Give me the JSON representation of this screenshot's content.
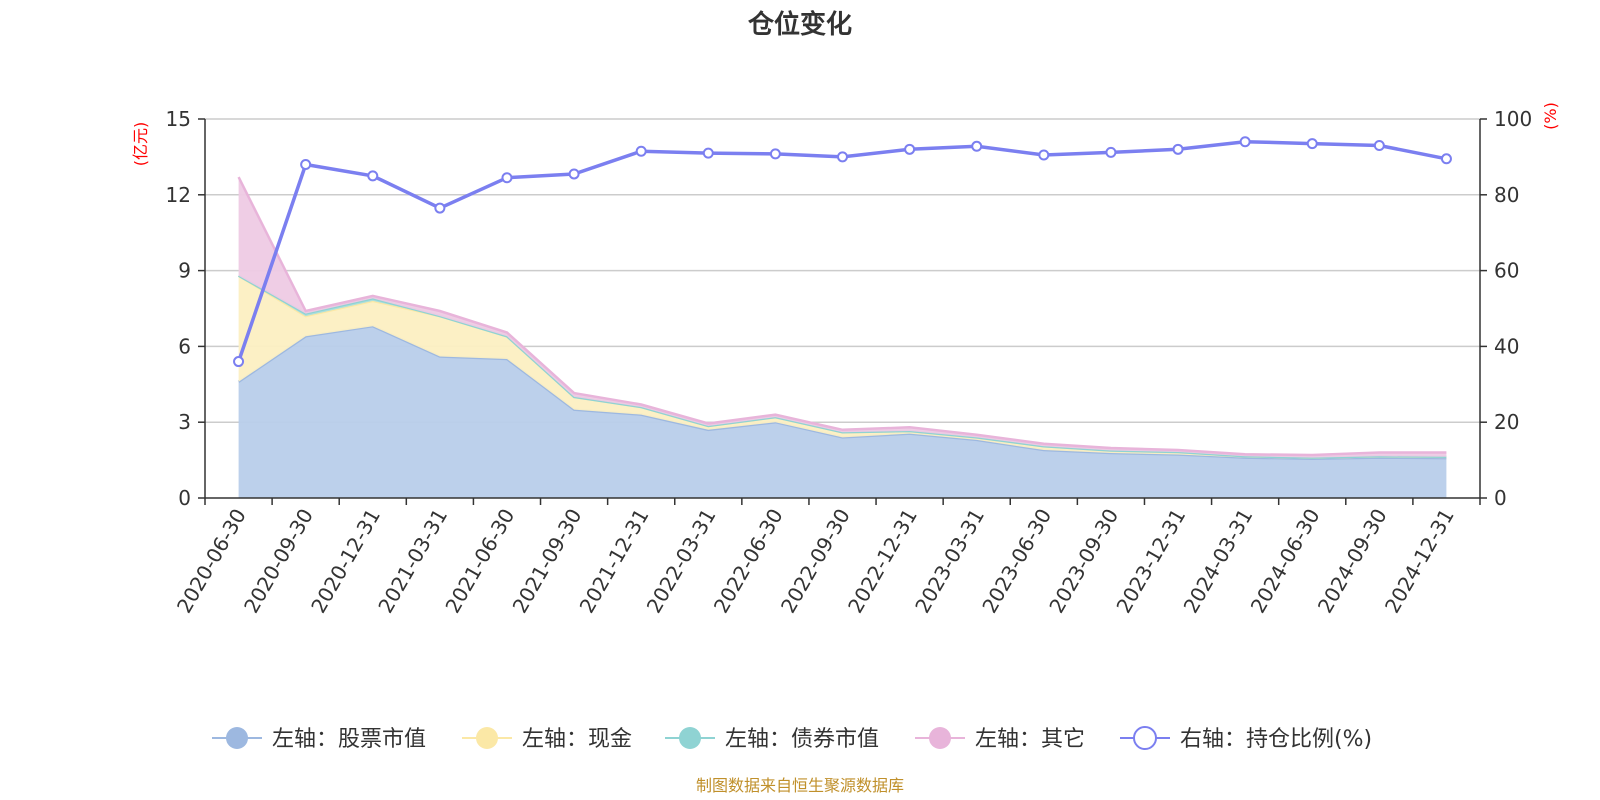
{
  "title": "仓位变化",
  "source": "制图数据来自恒生聚源数据库",
  "chart_data": {
    "type": "area",
    "categories": [
      "2020-06-30",
      "2020-09-30",
      "2020-12-31",
      "2021-03-31",
      "2021-06-30",
      "2021-09-30",
      "2021-12-31",
      "2022-03-31",
      "2022-06-30",
      "2022-09-30",
      "2022-12-31",
      "2023-03-31",
      "2023-06-30",
      "2023-09-30",
      "2023-12-31",
      "2024-03-31",
      "2024-06-30",
      "2024-09-30",
      "2024-12-31"
    ],
    "left_axis": {
      "unit": "(亿元)",
      "ylim": [
        0,
        15
      ],
      "ticks": [
        0,
        3,
        6,
        9,
        12,
        15
      ]
    },
    "right_axis": {
      "unit": "(%)",
      "ylim": [
        0,
        100
      ],
      "ticks": [
        0,
        20,
        40,
        60,
        80,
        100
      ]
    },
    "stacked": true,
    "series": [
      {
        "name": "左轴：股票市值",
        "axis": "left",
        "type": "area",
        "color": "#9db8e0",
        "fill": "#b8cdea",
        "values": [
          4.6,
          6.4,
          6.8,
          5.6,
          5.5,
          3.5,
          3.3,
          2.7,
          3.0,
          2.4,
          2.55,
          2.3,
          1.9,
          1.78,
          1.72,
          1.6,
          1.55,
          1.6,
          1.58
        ]
      },
      {
        "name": "左轴：现金",
        "axis": "left",
        "type": "area",
        "color": "#fbe8a6",
        "fill": "#fcefc2",
        "values": [
          4.2,
          0.8,
          1.0,
          1.6,
          0.9,
          0.5,
          0.3,
          0.15,
          0.2,
          0.2,
          0.1,
          0.1,
          0.15,
          0.1,
          0.1,
          0.05,
          0.05,
          0.05,
          0.05
        ]
      },
      {
        "name": "左轴：债券市值",
        "axis": "left",
        "type": "area",
        "color": "#8fd3d3",
        "fill": "#a8dede",
        "values": [
          0,
          0.1,
          0.1,
          0,
          0,
          0,
          0,
          0,
          0,
          0,
          0,
          0,
          0,
          0,
          0,
          0,
          0,
          0,
          0
        ]
      },
      {
        "name": "左轴：其它",
        "axis": "left",
        "type": "area",
        "color": "#e8b4da",
        "fill": "#eecae4",
        "values": [
          3.9,
          0.1,
          0.1,
          0.2,
          0.15,
          0.15,
          0.1,
          0.1,
          0.1,
          0.1,
          0.15,
          0.1,
          0.1,
          0.1,
          0.08,
          0.08,
          0.1,
          0.15,
          0.17
        ]
      },
      {
        "name": "右轴：持仓比例(%)",
        "axis": "right",
        "type": "line",
        "color": "#7b7ff0",
        "values": [
          36,
          88,
          85,
          76.5,
          84.5,
          85.5,
          91.5,
          91,
          90.8,
          90,
          92,
          92.8,
          90.5,
          91.2,
          92,
          94,
          93.5,
          93,
          89.5
        ]
      }
    ],
    "grid": true,
    "legend_position": "bottom"
  }
}
